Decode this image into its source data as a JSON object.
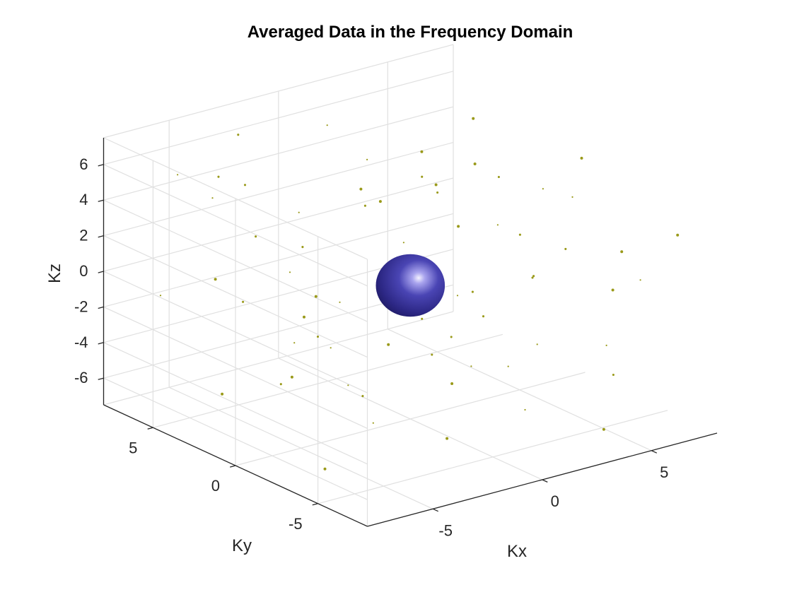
{
  "chart_data": {
    "type": "isosurface-3d",
    "title": "Averaged Data in the Frequency Domain",
    "xlabel": "Kx",
    "ylabel": "Ky",
    "zlabel": "Kz",
    "xlim": [
      -8,
      8
    ],
    "ylim": [
      -8,
      8
    ],
    "zlim": [
      -7.5,
      7.5
    ],
    "xticks": [
      -5,
      0,
      5
    ],
    "yticks": [
      -5,
      0,
      5
    ],
    "zticks": [
      -6,
      -4,
      -2,
      0,
      2,
      4,
      6
    ],
    "x_tick_labels": [
      "-5",
      "0",
      "5"
    ],
    "y_tick_labels": [
      "-5",
      "0",
      "5"
    ],
    "z_tick_labels": [
      "-6",
      "-4",
      "-2",
      "0",
      "2",
      "4",
      "6"
    ],
    "grid": true,
    "surfaces": [
      {
        "shape": "ellipsoid",
        "center": [
          0,
          0,
          0
        ],
        "radius": [
          1.2,
          1.2,
          1.3
        ],
        "color": "#3a3590"
      }
    ],
    "noise_color": "#9a9a1a",
    "noise_points": [
      [
        -6.5,
        5.5,
        6.0
      ],
      [
        -4.1,
        6.2,
        4.8
      ],
      [
        -7.2,
        -3.1,
        1.9
      ],
      [
        -5.0,
        -1.8,
        -1.1
      ],
      [
        -2.3,
        7.1,
        -3.2
      ],
      [
        -6.8,
        2.4,
        -4.9
      ],
      [
        1.4,
        6.9,
        5.6
      ],
      [
        3.7,
        4.2,
        3.1
      ],
      [
        5.8,
        -2.7,
        6.4
      ],
      [
        6.9,
        1.1,
        2.7
      ],
      [
        2.2,
        -6.5,
        4.1
      ],
      [
        -1.5,
        -4.9,
        5.9
      ],
      [
        4.6,
        -5.8,
        -2.4
      ],
      [
        6.2,
        -4.1,
        -5.3
      ],
      [
        -3.3,
        -6.6,
        -4.7
      ],
      [
        -0.8,
        -7.0,
        -1.3
      ],
      [
        3.1,
        2.8,
        -6.1
      ],
      [
        -2.7,
        3.6,
        -5.8
      ],
      [
        0.6,
        -2.9,
        -3.5
      ],
      [
        -4.4,
        0.7,
        3.3
      ],
      [
        1.9,
        -1.4,
        6.8
      ],
      [
        5.1,
        3.9,
        -3.9
      ],
      [
        -6.1,
        -5.2,
        -2.0
      ],
      [
        7.1,
        -6.8,
        3.4
      ],
      [
        -1.1,
        5.3,
        2.2
      ],
      [
        2.8,
        -3.7,
        1.1
      ],
      [
        -5.6,
        4.4,
        0.3
      ],
      [
        4.3,
        6.1,
        -1.6
      ],
      [
        -3.8,
        -2.3,
        6.7
      ],
      [
        6.5,
        4.8,
        5.2
      ],
      [
        0.2,
        7.3,
        -6.4
      ],
      [
        -7.0,
        0.1,
        5.0
      ],
      [
        3.5,
        -7.1,
        -6.2
      ],
      [
        -2.0,
        -0.4,
        -6.9
      ],
      [
        5.7,
        0.9,
        0.6
      ],
      [
        -0.3,
        2.6,
        4.4
      ],
      [
        1.1,
        -5.5,
        -5.0
      ],
      [
        -4.9,
        -7.2,
        2.8
      ],
      [
        2.4,
        5.0,
        1.8
      ],
      [
        -6.3,
        6.8,
        -1.4
      ],
      [
        7.3,
        2.2,
        -2.8
      ],
      [
        -1.7,
        -3.3,
        3.0
      ],
      [
        4.9,
        -1.2,
        -4.4
      ],
      [
        -3.1,
        1.5,
        -2.5
      ],
      [
        0.9,
        0.5,
        7.0
      ],
      [
        6.0,
        -6.0,
        0.9
      ],
      [
        -5.3,
        3.0,
        6.1
      ],
      [
        2.0,
        3.3,
        -3.0
      ],
      [
        -0.6,
        -6.1,
        6.2
      ],
      [
        3.9,
        -0.2,
        4.9
      ],
      [
        -7.3,
        -4.5,
        -6.0
      ],
      [
        1.6,
        6.4,
        -4.2
      ],
      [
        -2.5,
        -5.8,
        0.4
      ],
      [
        5.4,
        5.6,
        1.5
      ],
      [
        -4.6,
        5.9,
        3.9
      ],
      [
        0.4,
        -3.9,
        -0.2
      ],
      [
        6.7,
        -3.4,
        -1.0
      ],
      [
        -3.6,
        -1.0,
        -4.0
      ],
      [
        2.6,
        1.8,
        3.6
      ],
      [
        -1.3,
        4.0,
        -1.9
      ],
      [
        4.1,
        -4.4,
        5.5
      ],
      [
        -6.6,
        -0.9,
        -3.0
      ],
      [
        1.3,
        -0.8,
        -5.6
      ],
      [
        -5.8,
        -6.3,
        5.3
      ],
      [
        7.0,
        5.5,
        -5.0
      ],
      [
        -0.1,
        1.2,
        -3.8
      ],
      [
        3.3,
        7.0,
        3.0
      ],
      [
        -2.9,
        6.6,
        6.6
      ],
      [
        5.9,
        -5.0,
        2.1
      ],
      [
        -4.0,
        2.0,
        1.2
      ]
    ]
  }
}
